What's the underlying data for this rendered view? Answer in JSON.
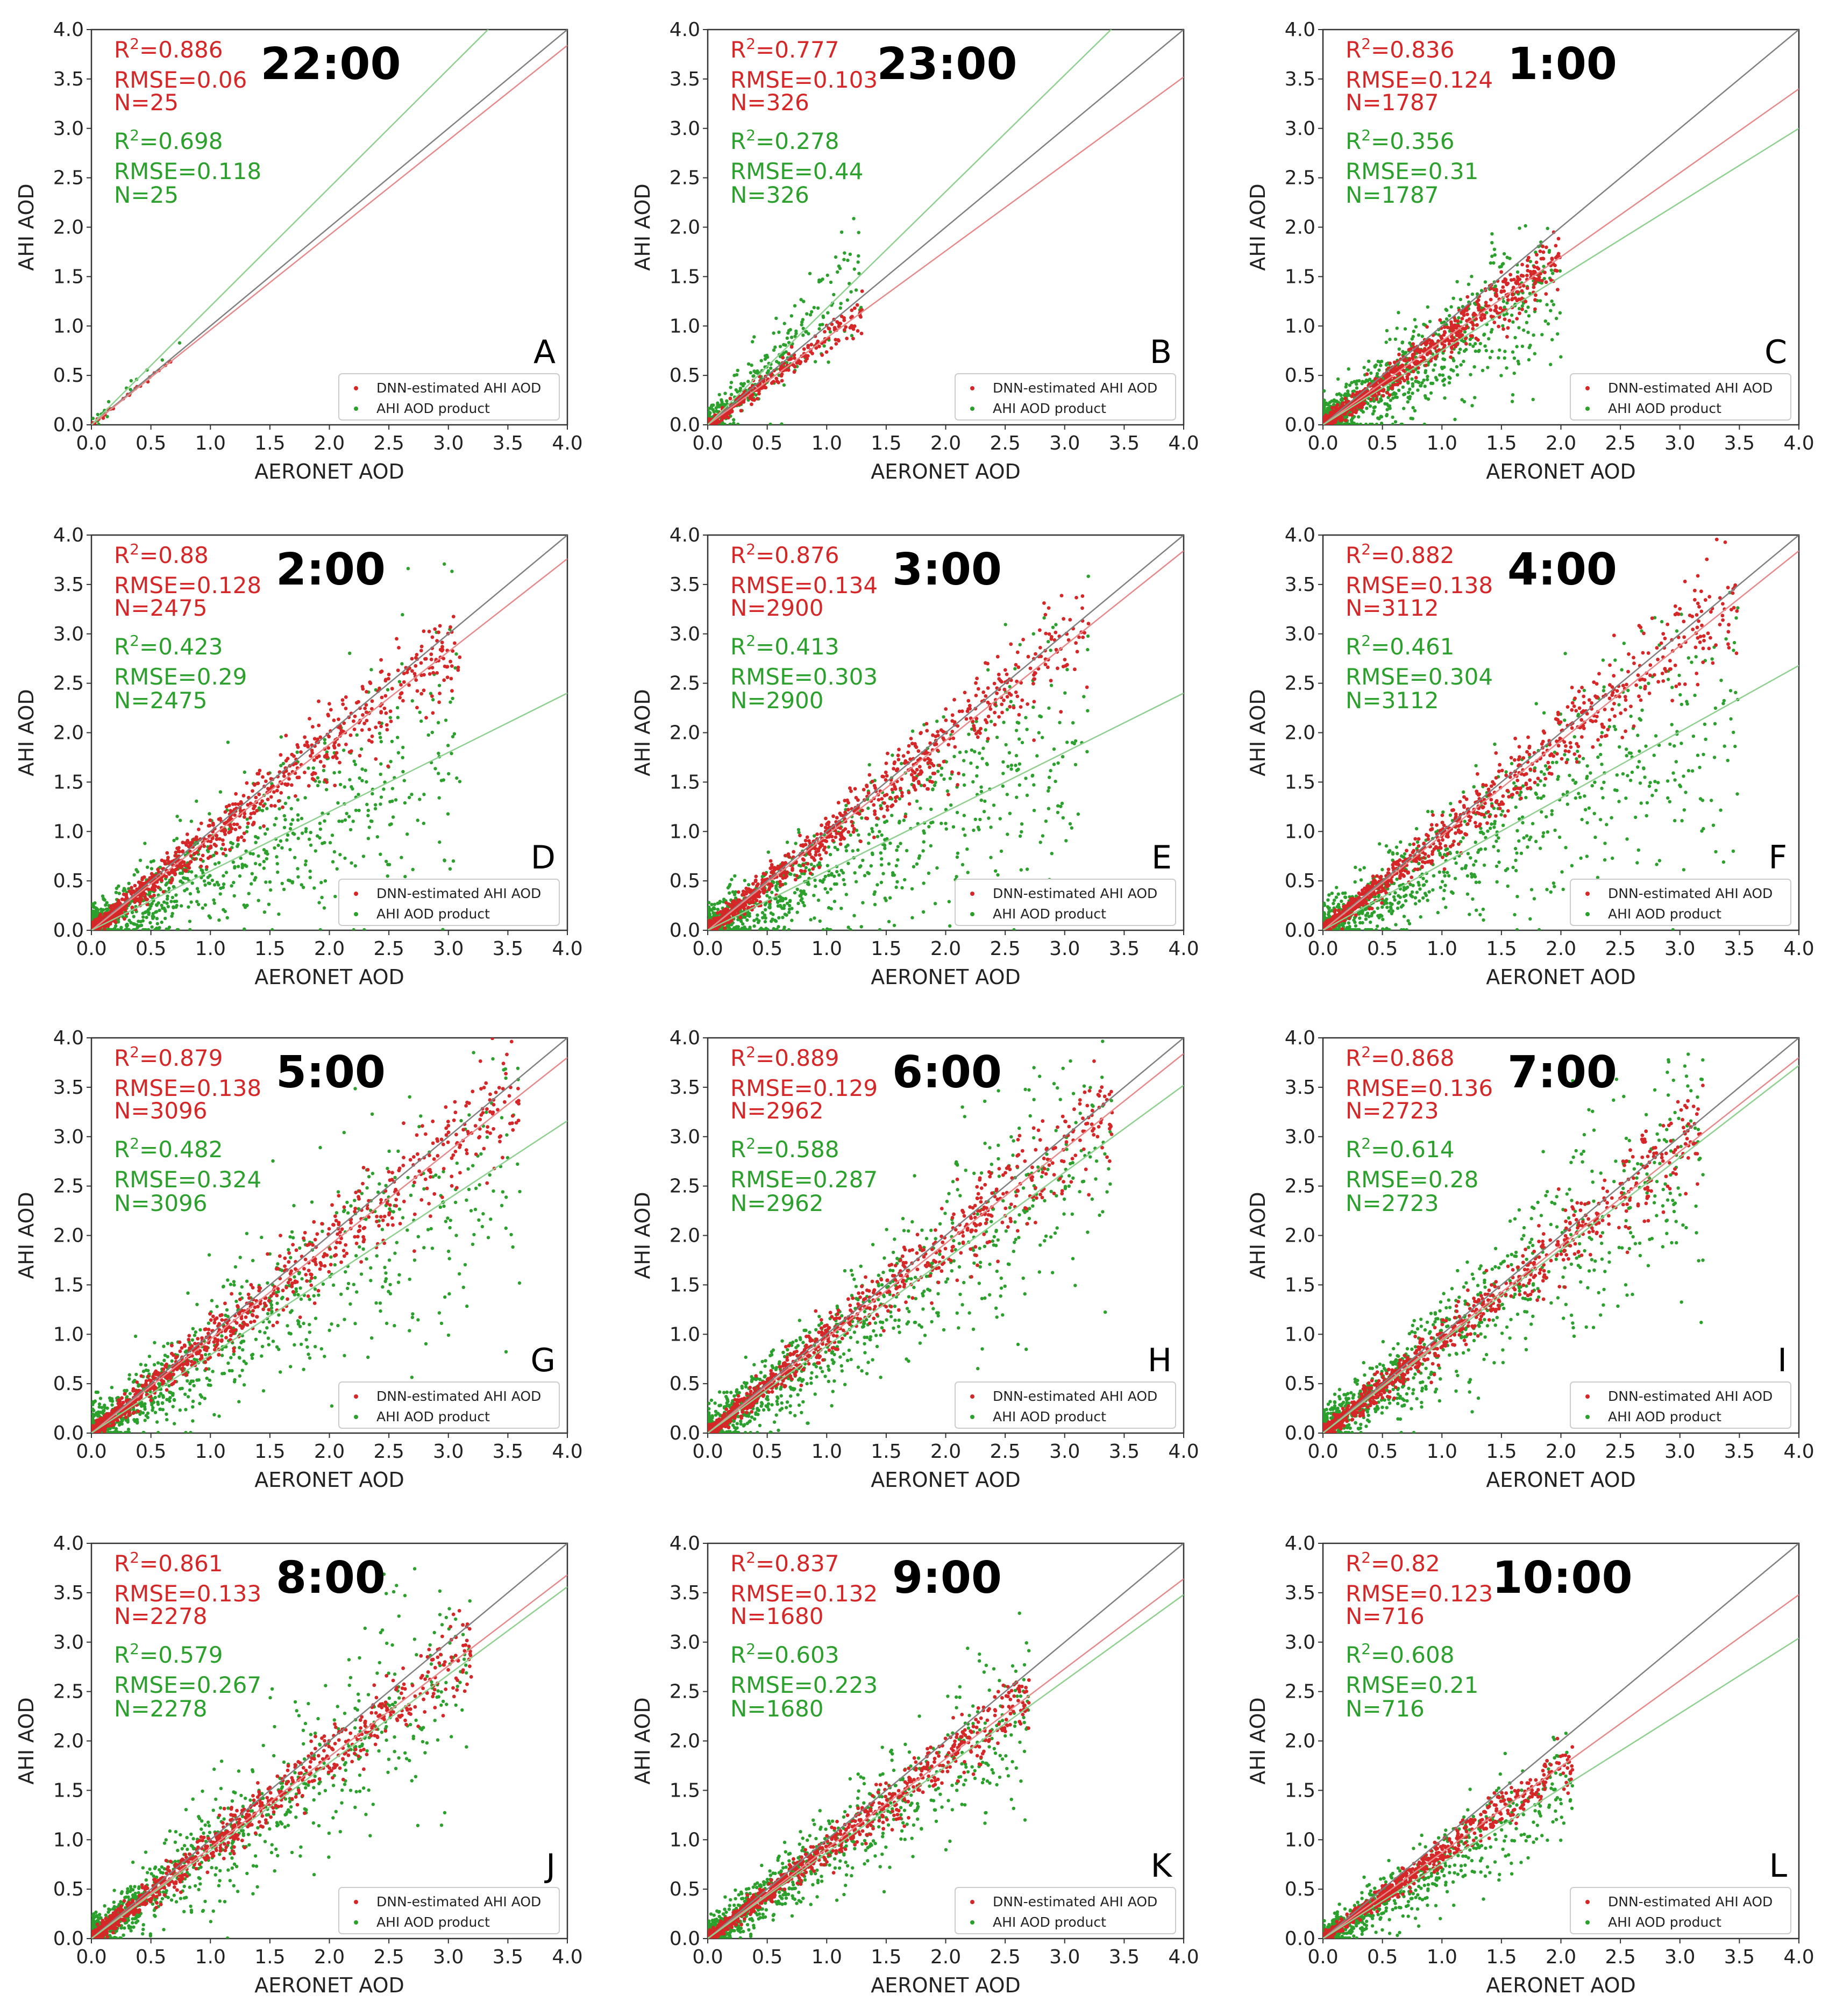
{
  "figure": {
    "xlabel": "AERONET AOD",
    "ylabel": "AHI AOD",
    "xlim": [
      0,
      4
    ],
    "ylim": [
      0,
      4
    ],
    "ticks": [
      "0.0",
      "0.5",
      "1.0",
      "1.5",
      "2.0",
      "2.5",
      "3.0",
      "3.5",
      "4.0"
    ],
    "legend": {
      "dnn": "DNN-estimated AHI AOD",
      "product": "AHI AOD product"
    },
    "colors": {
      "dnn": "#d62728",
      "product": "#2ca02c",
      "one_to_one": "#808080"
    }
  },
  "chart_data": [
    {
      "type": "scatter",
      "panel": "A",
      "title": "22:00",
      "xlabel": "AERONET AOD",
      "ylabel": "AHI AOD",
      "xlim": [
        0,
        4
      ],
      "ylim": [
        0,
        4
      ],
      "dnn": {
        "r2": "R²=0.886",
        "rmse": "RMSE=0.06",
        "n": "N=25",
        "fit_slope": 0.96
      },
      "product": {
        "r2": "R²=0.698",
        "rmse": "RMSE=0.118",
        "n": "N=25",
        "fit_slope": 1.2
      },
      "spread": 0.3,
      "xmax": 0.8
    },
    {
      "type": "scatter",
      "panel": "B",
      "title": "23:00",
      "xlabel": "AERONET AOD",
      "ylabel": "AHI AOD",
      "xlim": [
        0,
        4
      ],
      "ylim": [
        0,
        4
      ],
      "dnn": {
        "r2": "R²=0.777",
        "rmse": "RMSE=0.103",
        "n": "N=326",
        "fit_slope": 0.88
      },
      "product": {
        "r2": "R²=0.278",
        "rmse": "RMSE=0.44",
        "n": "N=326",
        "fit_slope": 1.18
      },
      "spread": 0.7,
      "xmax": 1.3
    },
    {
      "type": "scatter",
      "panel": "C",
      "title": "1:00",
      "xlabel": "AERONET AOD",
      "ylabel": "AHI AOD",
      "xlim": [
        0,
        4
      ],
      "ylim": [
        0,
        4
      ],
      "dnn": {
        "r2": "R²=0.836",
        "rmse": "RMSE=0.124",
        "n": "N=1787",
        "fit_slope": 0.85
      },
      "product": {
        "r2": "R²=0.356",
        "rmse": "RMSE=0.31",
        "n": "N=1787",
        "fit_slope": 0.75
      },
      "spread": 0.8,
      "xmax": 2.0
    },
    {
      "type": "scatter",
      "panel": "D",
      "title": "2:00",
      "xlabel": "AERONET AOD",
      "ylabel": "AHI AOD",
      "xlim": [
        0,
        4
      ],
      "ylim": [
        0,
        4
      ],
      "dnn": {
        "r2": "R²=0.88",
        "rmse": "RMSE=0.128",
        "n": "N=2475",
        "fit_slope": 0.94
      },
      "product": {
        "r2": "R²=0.423",
        "rmse": "RMSE=0.29",
        "n": "N=2475",
        "fit_slope": 0.6
      },
      "spread": 0.9,
      "xmax": 3.1
    },
    {
      "type": "scatter",
      "panel": "E",
      "title": "3:00",
      "xlabel": "AERONET AOD",
      "ylabel": "AHI AOD",
      "xlim": [
        0,
        4
      ],
      "ylim": [
        0,
        4
      ],
      "dnn": {
        "r2": "R²=0.876",
        "rmse": "RMSE=0.134",
        "n": "N=2900",
        "fit_slope": 0.96
      },
      "product": {
        "r2": "R²=0.413",
        "rmse": "RMSE=0.303",
        "n": "N=2900",
        "fit_slope": 0.6
      },
      "spread": 0.9,
      "xmax": 3.2
    },
    {
      "type": "scatter",
      "panel": "F",
      "title": "4:00",
      "xlabel": "AERONET AOD",
      "ylabel": "AHI AOD",
      "xlim": [
        0,
        4
      ],
      "ylim": [
        0,
        4
      ],
      "dnn": {
        "r2": "R²=0.882",
        "rmse": "RMSE=0.138",
        "n": "N=3112",
        "fit_slope": 0.96
      },
      "product": {
        "r2": "R²=0.461",
        "rmse": "RMSE=0.304",
        "n": "N=3112",
        "fit_slope": 0.67
      },
      "spread": 0.9,
      "xmax": 3.5
    },
    {
      "type": "scatter",
      "panel": "G",
      "title": "5:00",
      "xlabel": "AERONET AOD",
      "ylabel": "AHI AOD",
      "xlim": [
        0,
        4
      ],
      "ylim": [
        0,
        4
      ],
      "dnn": {
        "r2": "R²=0.879",
        "rmse": "RMSE=0.138",
        "n": "N=3096",
        "fit_slope": 0.95
      },
      "product": {
        "r2": "R²=0.482",
        "rmse": "RMSE=0.324",
        "n": "N=3096",
        "fit_slope": 0.79
      },
      "spread": 0.9,
      "xmax": 3.6
    },
    {
      "type": "scatter",
      "panel": "H",
      "title": "6:00",
      "xlabel": "AERONET AOD",
      "ylabel": "AHI AOD",
      "xlim": [
        0,
        4
      ],
      "ylim": [
        0,
        4
      ],
      "dnn": {
        "r2": "R²=0.889",
        "rmse": "RMSE=0.129",
        "n": "N=2962",
        "fit_slope": 0.96
      },
      "product": {
        "r2": "R²=0.588",
        "rmse": "RMSE=0.287",
        "n": "N=2962",
        "fit_slope": 0.88
      },
      "spread": 0.85,
      "xmax": 3.4
    },
    {
      "type": "scatter",
      "panel": "I",
      "title": "7:00",
      "xlabel": "AERONET AOD",
      "ylabel": "AHI AOD",
      "xlim": [
        0,
        4
      ],
      "ylim": [
        0,
        4
      ],
      "dnn": {
        "r2": "R²=0.868",
        "rmse": "RMSE=0.136",
        "n": "N=2723",
        "fit_slope": 0.95
      },
      "product": {
        "r2": "R²=0.614",
        "rmse": "RMSE=0.28",
        "n": "N=2723",
        "fit_slope": 0.93
      },
      "spread": 0.85,
      "xmax": 3.2
    },
    {
      "type": "scatter",
      "panel": "J",
      "title": "8:00",
      "xlabel": "AERONET AOD",
      "ylabel": "AHI AOD",
      "xlim": [
        0,
        4
      ],
      "ylim": [
        0,
        4
      ],
      "dnn": {
        "r2": "R²=0.861",
        "rmse": "RMSE=0.133",
        "n": "N=2278",
        "fit_slope": 0.92
      },
      "product": {
        "r2": "R²=0.579",
        "rmse": "RMSE=0.267",
        "n": "N=2278",
        "fit_slope": 0.89
      },
      "spread": 0.8,
      "xmax": 3.2
    },
    {
      "type": "scatter",
      "panel": "K",
      "title": "9:00",
      "xlabel": "AERONET AOD",
      "ylabel": "AHI AOD",
      "xlim": [
        0,
        4
      ],
      "ylim": [
        0,
        4
      ],
      "dnn": {
        "r2": "R²=0.837",
        "rmse": "RMSE=0.132",
        "n": "N=1680",
        "fit_slope": 0.91
      },
      "product": {
        "r2": "R²=0.603",
        "rmse": "RMSE=0.223",
        "n": "N=1680",
        "fit_slope": 0.87
      },
      "spread": 0.7,
      "xmax": 2.7
    },
    {
      "type": "scatter",
      "panel": "L",
      "title": "10:00",
      "xlabel": "AERONET AOD",
      "ylabel": "AHI AOD",
      "xlim": [
        0,
        4
      ],
      "ylim": [
        0,
        4
      ],
      "dnn": {
        "r2": "R²=0.82",
        "rmse": "RMSE=0.123",
        "n": "N=716",
        "fit_slope": 0.87
      },
      "product": {
        "r2": "R²=0.608",
        "rmse": "RMSE=0.21",
        "n": "N=716",
        "fit_slope": 0.76
      },
      "spread": 0.6,
      "xmax": 2.1
    }
  ]
}
